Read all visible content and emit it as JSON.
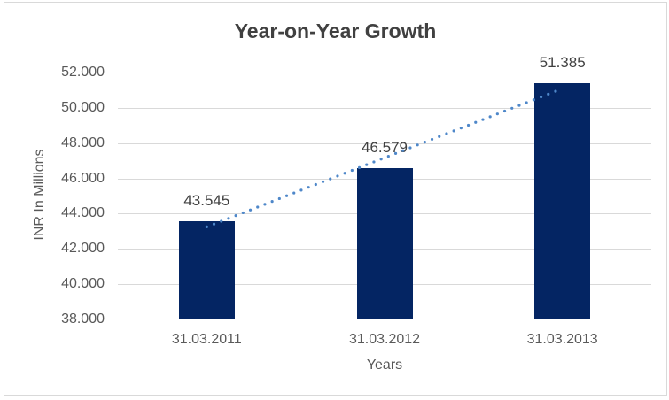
{
  "chart_data": {
    "type": "bar",
    "title": "Year-on-Year Growth",
    "xlabel": "Years",
    "ylabel": "INR In Millions",
    "categories": [
      "31.03.2011",
      "31.03.2012",
      "31.03.2013"
    ],
    "values": [
      43545,
      46579,
      51385
    ],
    "data_labels": [
      "43.545",
      "46.579",
      "51.385"
    ],
    "ylim": [
      38000,
      52000
    ],
    "ytick_step": 2000,
    "ytick_labels": [
      "38.000",
      "40.000",
      "42.000",
      "44.000",
      "46.000",
      "48.000",
      "50.000",
      "52.000"
    ],
    "grid": true,
    "legend": false,
    "trendline": {
      "type": "linear",
      "style": "dotted"
    },
    "colors": {
      "bar": "#042563",
      "trendline": "#4E87C9",
      "gridline": "#D9D9D9",
      "axis_line": "#D9D9D9",
      "title_text": "#404040",
      "tick_text": "#595959",
      "data_label_text": "#404040",
      "frame_border": "#D9D9D9",
      "background": "#FFFFFF"
    }
  }
}
